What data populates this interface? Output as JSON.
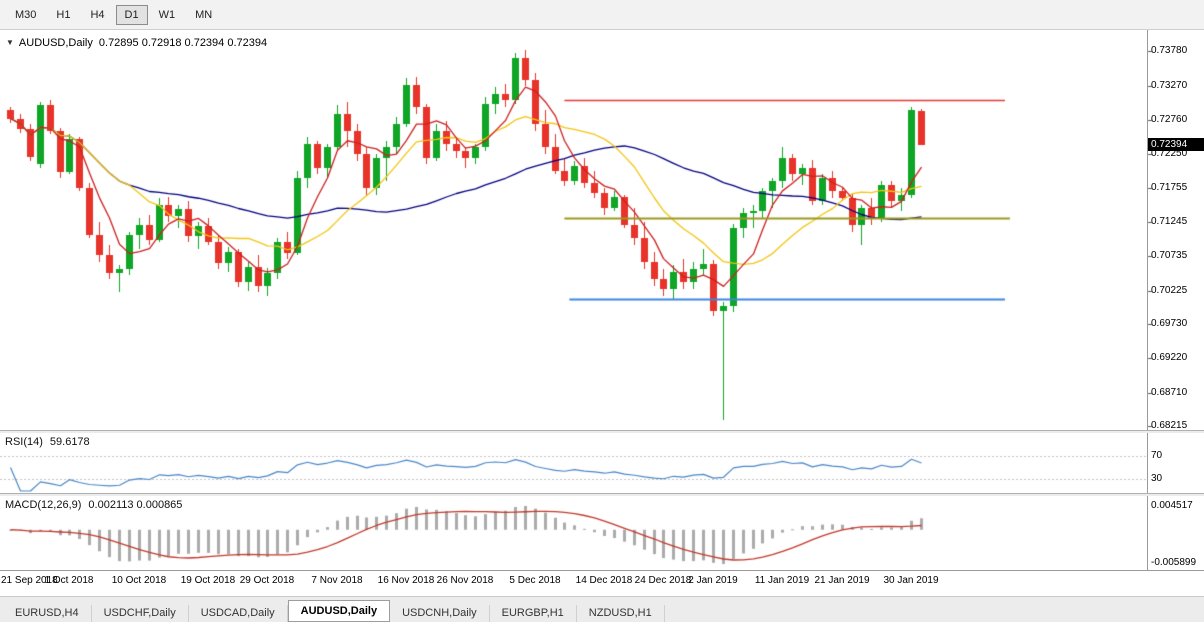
{
  "toolbar": {
    "timeframes": [
      {
        "label": "M30",
        "active": false
      },
      {
        "label": "H1",
        "active": false
      },
      {
        "label": "H4",
        "active": false
      },
      {
        "label": "D1",
        "active": true
      },
      {
        "label": "W1",
        "active": false
      },
      {
        "label": "MN",
        "active": false
      }
    ]
  },
  "chart": {
    "symbol_title": "AUDUSD,Daily",
    "ohlc": "0.72895 0.72918 0.72394 0.72394",
    "current_price": "0.72394"
  },
  "price_axis": {
    "ticks": [
      "0.73780",
      "0.73270",
      "0.72760",
      "0.72250",
      "0.71755",
      "0.71245",
      "0.70735",
      "0.70225",
      "0.69730",
      "0.69220",
      "0.68710",
      "0.68215"
    ]
  },
  "rsi_panel": {
    "name": "RSI(14)",
    "value": "59.6178",
    "levels": [
      "70",
      "30"
    ]
  },
  "macd_panel": {
    "name": "MACD(12,26,9)",
    "value": "0.002113 0.000865",
    "axis_max": "0.004517",
    "axis_min": "-0.005899"
  },
  "tabs": [
    {
      "label": "EURUSD,H4",
      "active": false
    },
    {
      "label": "USDCHF,Daily",
      "active": false
    },
    {
      "label": "USDCAD,Daily",
      "active": false
    },
    {
      "label": "AUDUSD,Daily",
      "active": true
    },
    {
      "label": "USDCNH,Daily",
      "active": false
    },
    {
      "label": "EURGBP,H1",
      "active": false
    },
    {
      "label": "NZDUSD,H1",
      "active": false
    }
  ],
  "colors": {
    "bull": "#0fa526",
    "bear": "#e8332a",
    "ma_slow": "#00007f",
    "ma_mid": "#f2c511",
    "ma_fast": "#cc2020",
    "hline_red": "#e53935",
    "hline_olive": "#9a9a20",
    "hline_blue": "#3d86e0",
    "rsi_line": "#4a86c8",
    "rsi_level": "#c4c4c4",
    "macd_hist": "#ababab",
    "macd_signal": "#c0392b"
  },
  "chart_data": {
    "type": "candlestick",
    "symbol": "AUDUSD",
    "timeframe": "Daily",
    "title": "AUDUSD,Daily",
    "ylim": [
      0.6817,
      0.7405
    ],
    "grid": false,
    "candles": [
      [
        0.729,
        0.7295,
        0.7272,
        0.7278
      ],
      [
        0.7278,
        0.7285,
        0.7256,
        0.7262
      ],
      [
        0.7262,
        0.727,
        0.7215,
        0.7221
      ],
      [
        0.721,
        0.7303,
        0.7205,
        0.7298
      ],
      [
        0.7298,
        0.7306,
        0.7255,
        0.726
      ],
      [
        0.726,
        0.7264,
        0.719,
        0.7198
      ],
      [
        0.7198,
        0.7255,
        0.7195,
        0.7248
      ],
      [
        0.7248,
        0.725,
        0.717,
        0.7175
      ],
      [
        0.7175,
        0.7182,
        0.71,
        0.7105
      ],
      [
        0.7105,
        0.7125,
        0.7065,
        0.7075
      ],
      [
        0.7075,
        0.709,
        0.704,
        0.7048
      ],
      [
        0.7048,
        0.706,
        0.7021,
        0.7054
      ],
      [
        0.7054,
        0.711,
        0.7045,
        0.7105
      ],
      [
        0.7105,
        0.713,
        0.7085,
        0.712
      ],
      [
        0.712,
        0.7135,
        0.709,
        0.7098
      ],
      [
        0.7098,
        0.716,
        0.7095,
        0.715
      ],
      [
        0.715,
        0.7162,
        0.7125,
        0.7133
      ],
      [
        0.7133,
        0.715,
        0.7115,
        0.7144
      ],
      [
        0.7144,
        0.7156,
        0.7094,
        0.7103
      ],
      [
        0.7103,
        0.7125,
        0.7085,
        0.7118
      ],
      [
        0.7118,
        0.713,
        0.709,
        0.7095
      ],
      [
        0.7095,
        0.7105,
        0.7055,
        0.7063
      ],
      [
        0.7063,
        0.7087,
        0.705,
        0.708
      ],
      [
        0.708,
        0.7085,
        0.7028,
        0.7035
      ],
      [
        0.7035,
        0.7065,
        0.7022,
        0.7058
      ],
      [
        0.7058,
        0.7075,
        0.7021,
        0.703
      ],
      [
        0.703,
        0.7056,
        0.7015,
        0.7048
      ],
      [
        0.7048,
        0.71,
        0.704,
        0.7095
      ],
      [
        0.7095,
        0.711,
        0.7069,
        0.7079
      ],
      [
        0.7079,
        0.72,
        0.7075,
        0.719
      ],
      [
        0.719,
        0.725,
        0.7175,
        0.724
      ],
      [
        0.724,
        0.7245,
        0.7195,
        0.7205
      ],
      [
        0.7205,
        0.724,
        0.719,
        0.7235
      ],
      [
        0.7235,
        0.7298,
        0.723,
        0.7285
      ],
      [
        0.7285,
        0.7302,
        0.7235,
        0.726
      ],
      [
        0.726,
        0.727,
        0.7215,
        0.7225
      ],
      [
        0.7225,
        0.7235,
        0.7164,
        0.7175
      ],
      [
        0.7175,
        0.7225,
        0.7165,
        0.722
      ],
      [
        0.722,
        0.7245,
        0.7185,
        0.7235
      ],
      [
        0.7235,
        0.728,
        0.7225,
        0.727
      ],
      [
        0.727,
        0.7338,
        0.7265,
        0.7328
      ],
      [
        0.7328,
        0.734,
        0.7285,
        0.7295
      ],
      [
        0.7295,
        0.73,
        0.721,
        0.722
      ],
      [
        0.722,
        0.727,
        0.7215,
        0.726
      ],
      [
        0.726,
        0.7275,
        0.723,
        0.724
      ],
      [
        0.724,
        0.725,
        0.722,
        0.723
      ],
      [
        0.723,
        0.7235,
        0.7205,
        0.722
      ],
      [
        0.722,
        0.724,
        0.721,
        0.7235
      ],
      [
        0.7235,
        0.731,
        0.723,
        0.73
      ],
      [
        0.73,
        0.7325,
        0.7285,
        0.7315
      ],
      [
        0.7315,
        0.733,
        0.7295,
        0.7305
      ],
      [
        0.7305,
        0.7375,
        0.73,
        0.7368
      ],
      [
        0.7368,
        0.738,
        0.7327,
        0.7335
      ],
      [
        0.7335,
        0.7345,
        0.726,
        0.727
      ],
      [
        0.727,
        0.729,
        0.7225,
        0.7235
      ],
      [
        0.7235,
        0.7255,
        0.7195,
        0.72
      ],
      [
        0.72,
        0.7218,
        0.7178,
        0.7185
      ],
      [
        0.7185,
        0.7215,
        0.718,
        0.7208
      ],
      [
        0.7208,
        0.722,
        0.7175,
        0.7182
      ],
      [
        0.7182,
        0.72,
        0.716,
        0.7168
      ],
      [
        0.7168,
        0.7175,
        0.7135,
        0.7145
      ],
      [
        0.7145,
        0.717,
        0.714,
        0.7162
      ],
      [
        0.7162,
        0.7165,
        0.7115,
        0.712
      ],
      [
        0.712,
        0.7145,
        0.709,
        0.71
      ],
      [
        0.71,
        0.7125,
        0.7055,
        0.7065
      ],
      [
        0.7065,
        0.708,
        0.703,
        0.704
      ],
      [
        0.704,
        0.7055,
        0.7015,
        0.7025
      ],
      [
        0.7025,
        0.706,
        0.701,
        0.705
      ],
      [
        0.705,
        0.707,
        0.7025,
        0.7035
      ],
      [
        0.7035,
        0.7065,
        0.7025,
        0.7055
      ],
      [
        0.7055,
        0.7085,
        0.7045,
        0.7062
      ],
      [
        0.7062,
        0.7068,
        0.6985,
        0.6992
      ],
      [
        0.6992,
        0.7005,
        0.683,
        0.7
      ],
      [
        0.7,
        0.7122,
        0.699,
        0.7115
      ],
      [
        0.7115,
        0.7145,
        0.71,
        0.7138
      ],
      [
        0.7138,
        0.715,
        0.7115,
        0.714
      ],
      [
        0.714,
        0.7175,
        0.713,
        0.717
      ],
      [
        0.717,
        0.719,
        0.7145,
        0.7185
      ],
      [
        0.7185,
        0.7235,
        0.7175,
        0.722
      ],
      [
        0.722,
        0.7225,
        0.7185,
        0.7195
      ],
      [
        0.7195,
        0.721,
        0.718,
        0.7205
      ],
      [
        0.7205,
        0.7217,
        0.715,
        0.7155
      ],
      [
        0.7155,
        0.7195,
        0.715,
        0.719
      ],
      [
        0.719,
        0.72,
        0.716,
        0.717
      ],
      [
        0.717,
        0.7175,
        0.7155,
        0.716
      ],
      [
        0.716,
        0.7168,
        0.711,
        0.712
      ],
      [
        0.712,
        0.715,
        0.709,
        0.7145
      ],
      [
        0.7145,
        0.716,
        0.712,
        0.713
      ],
      [
        0.713,
        0.7185,
        0.7125,
        0.718
      ],
      [
        0.718,
        0.7185,
        0.7145,
        0.7155
      ],
      [
        0.7155,
        0.7175,
        0.714,
        0.7165
      ],
      [
        0.7165,
        0.7295,
        0.716,
        0.729
      ],
      [
        0.72895,
        0.72918,
        0.72394,
        0.72394
      ]
    ],
    "x_labels": [
      {
        "text": "21 Sep 2018",
        "bar": 0
      },
      {
        "text": "1 Oct 2018",
        "bar": 6
      },
      {
        "text": "10 Oct 2018",
        "bar": 13
      },
      {
        "text": "19 Oct 2018",
        "bar": 20
      },
      {
        "text": "29 Oct 2018",
        "bar": 26
      },
      {
        "text": "7 Nov 2018",
        "bar": 33
      },
      {
        "text": "16 Nov 2018",
        "bar": 40
      },
      {
        "text": "26 Nov 2018",
        "bar": 46
      },
      {
        "text": "5 Dec 2018",
        "bar": 53
      },
      {
        "text": "14 Dec 2018",
        "bar": 60
      },
      {
        "text": "24 Dec 2018",
        "bar": 66
      },
      {
        "text": "2 Jan 2019",
        "bar": 71
      },
      {
        "text": "11 Jan 2019",
        "bar": 78
      },
      {
        "text": "21 Jan 2019",
        "bar": 84
      },
      {
        "text": "30 Jan 2019",
        "bar": 91
      }
    ],
    "moving_averages": [
      {
        "period": 34,
        "color_key": "ma_slow"
      },
      {
        "period": 13,
        "color_key": "ma_mid"
      },
      {
        "period": 5,
        "color_key": "ma_fast"
      }
    ],
    "hlines": [
      {
        "price": 0.7306,
        "color_key": "hline_red",
        "from_bar": 56,
        "to_bar": 100.5,
        "width": 1.5
      },
      {
        "price": 0.7131,
        "color_key": "hline_olive",
        "from_bar": 56,
        "to_bar": 101,
        "width": 2
      },
      {
        "price": 0.701,
        "color_key": "hline_blue",
        "from_bar": 56.5,
        "to_bar": 100.5,
        "width": 2
      }
    ],
    "indicators": {
      "rsi": {
        "period": 14,
        "levels": [
          70,
          30
        ]
      },
      "macd": {
        "fast": 12,
        "slow": 26,
        "signal_period": 9
      }
    }
  }
}
